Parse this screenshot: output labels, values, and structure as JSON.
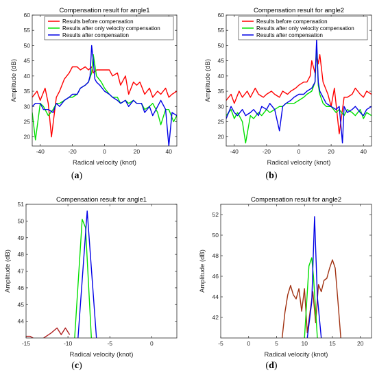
{
  "figure": {
    "captions": [
      "a",
      "b",
      "c",
      "d"
    ]
  },
  "chart_data": [
    {
      "type": "line",
      "panel": "a",
      "title": "Compensation result for angle1",
      "xlabel": "Radical velocity (knot)",
      "ylabel": "Amplitude (dB)",
      "xlim": [
        -45,
        45
      ],
      "ylim": [
        17,
        60
      ],
      "xticks": [
        -40,
        -20,
        0,
        20,
        40
      ],
      "yticks": [
        20,
        25,
        30,
        35,
        40,
        45,
        50,
        55,
        60
      ],
      "legend_position": "top",
      "series": [
        {
          "name": "Results before compensation",
          "color": "#ff0000",
          "x": [
            -45,
            -42,
            -40,
            -37,
            -35,
            -33,
            -30,
            -28,
            -25,
            -22,
            -20,
            -17,
            -15,
            -12,
            -10,
            -8,
            -7,
            -5,
            -3,
            0,
            3,
            5,
            8,
            10,
            13,
            15,
            18,
            20,
            22,
            25,
            28,
            30,
            33,
            35,
            38,
            40,
            42,
            45
          ],
          "values": [
            33,
            35,
            32,
            36,
            31,
            20,
            33,
            35,
            39,
            41,
            43,
            43,
            42,
            43,
            42,
            43,
            41,
            42,
            42,
            42,
            42,
            40,
            41,
            37,
            40,
            34,
            38,
            37,
            38,
            34,
            36,
            33,
            35,
            34,
            36,
            33,
            34,
            35
          ]
        },
        {
          "name": "Results after only velocity compensation",
          "color": "#00e000",
          "x": [
            -45,
            -43,
            -40,
            -38,
            -35,
            -32,
            -30,
            -28,
            -25,
            -22,
            -20,
            -17,
            -15,
            -12,
            -10,
            -8,
            -7,
            -5,
            -2,
            0,
            3,
            5,
            8,
            10,
            13,
            15,
            18,
            20,
            23,
            25,
            28,
            30,
            33,
            35,
            38,
            40,
            43,
            45
          ],
          "values": [
            28,
            19,
            31,
            30,
            27,
            29,
            31,
            31,
            32,
            33,
            33,
            34,
            36,
            37,
            38,
            41,
            47,
            40,
            38,
            36,
            34,
            33,
            33,
            31,
            32,
            31,
            32,
            31,
            31,
            29,
            30,
            31,
            28,
            24,
            29,
            29,
            25,
            27
          ]
        },
        {
          "name": "Results after compensation",
          "color": "#0000e6",
          "x": [
            -45,
            -43,
            -40,
            -38,
            -35,
            -32,
            -30,
            -28,
            -25,
            -22,
            -20,
            -17,
            -15,
            -12,
            -10,
            -9,
            -8,
            -7,
            -6,
            -5,
            -3,
            0,
            3,
            5,
            8,
            10,
            13,
            15,
            18,
            20,
            23,
            25,
            28,
            30,
            33,
            35,
            38,
            40,
            42,
            45
          ],
          "values": [
            30,
            31,
            31,
            29,
            29,
            28,
            31,
            30,
            32,
            33,
            34,
            34,
            36,
            37,
            38,
            40,
            50,
            45,
            39,
            38,
            37,
            35,
            34,
            33,
            32,
            31,
            32,
            30,
            32,
            31,
            31,
            28,
            30,
            27,
            30,
            32,
            29,
            17,
            28,
            27
          ]
        }
      ]
    },
    {
      "type": "line",
      "panel": "b",
      "title": "Compensation result for angle2",
      "xlabel": "Radical velocity (knot)",
      "ylabel": "Amplitude (dB)",
      "xlim": [
        -45,
        45
      ],
      "ylim": [
        17,
        60
      ],
      "xticks": [
        -40,
        -20,
        0,
        20,
        40
      ],
      "yticks": [
        20,
        25,
        30,
        35,
        40,
        45,
        50,
        55,
        60
      ],
      "legend_position": "top",
      "series": [
        {
          "name": "Results before compensation",
          "color": "#ff0000",
          "x": [
            -45,
            -42,
            -40,
            -37,
            -35,
            -32,
            -30,
            -27,
            -25,
            -22,
            -20,
            -17,
            -15,
            -12,
            -10,
            -7,
            -5,
            -2,
            0,
            3,
            5,
            7,
            8,
            10,
            11,
            12,
            13,
            15,
            18,
            20,
            22,
            25,
            28,
            30,
            33,
            35,
            38,
            40,
            42,
            45
          ],
          "values": [
            32,
            34,
            31,
            35,
            33,
            35,
            33,
            36,
            34,
            33,
            34,
            35,
            34,
            33,
            35,
            34,
            35,
            36,
            37,
            38,
            38,
            40,
            45,
            41,
            47,
            44,
            47,
            38,
            34,
            30,
            36,
            21,
            33,
            33,
            34,
            36,
            34,
            33,
            35,
            34
          ]
        },
        {
          "name": "Results after only velocity compensation",
          "color": "#00e000",
          "x": [
            -45,
            -42,
            -40,
            -38,
            -35,
            -33,
            -30,
            -28,
            -25,
            -23,
            -20,
            -18,
            -15,
            -12,
            -10,
            -8,
            -5,
            -3,
            0,
            3,
            5,
            8,
            10,
            11,
            12,
            13,
            15,
            17,
            20,
            23,
            25,
            28,
            30,
            33,
            35,
            38,
            40,
            42,
            45
          ],
          "values": [
            27,
            29,
            26,
            28,
            25,
            18,
            27,
            26,
            28,
            27,
            29,
            28,
            29,
            30,
            30,
            31,
            31,
            31,
            32,
            33,
            34,
            35,
            38,
            50,
            37,
            34,
            31,
            30,
            30,
            28,
            29,
            27,
            29,
            28,
            27,
            29,
            26,
            28,
            27
          ]
        },
        {
          "name": "Results after compensation",
          "color": "#0000e6",
          "x": [
            -45,
            -42,
            -40,
            -38,
            -35,
            -33,
            -30,
            -28,
            -25,
            -23,
            -20,
            -18,
            -15,
            -12,
            -10,
            -8,
            -5,
            -3,
            0,
            3,
            5,
            8,
            10,
            11,
            12,
            13,
            15,
            17,
            20,
            23,
            25,
            27,
            28,
            30,
            33,
            35,
            38,
            40,
            42,
            45
          ],
          "values": [
            26,
            30,
            28,
            27,
            29,
            27,
            28,
            29,
            27,
            30,
            29,
            31,
            29,
            22,
            30,
            31,
            32,
            33,
            34,
            34,
            35,
            36,
            38,
            52,
            38,
            35,
            33,
            31,
            30,
            29,
            30,
            18,
            30,
            28,
            29,
            30,
            28,
            27,
            29,
            30
          ]
        }
      ]
    },
    {
      "type": "line",
      "panel": "c",
      "title": "Compensation result for angle1",
      "xlabel": "Radical velocity (knot)",
      "ylabel": "Amplitude (dB)",
      "xlim": [
        -15,
        3
      ],
      "ylim": [
        43,
        51
      ],
      "xticks": [
        -15,
        -10,
        -5,
        0
      ],
      "yticks": [
        44,
        45,
        46,
        47,
        48,
        49,
        50,
        51
      ],
      "series": [
        {
          "color": "#b02020",
          "x": [
            -15,
            -14.5,
            -13.5,
            -12,
            -11.3,
            -10.8,
            -10.3,
            -9.8
          ],
          "values": [
            43.1,
            43.1,
            42.8,
            43.3,
            43.6,
            43.2,
            43.6,
            43.2
          ]
        },
        {
          "color": "#00e000",
          "x": [
            -9.2,
            -8.3,
            -7.9,
            -7.2
          ],
          "values": [
            43,
            50.1,
            49.6,
            43
          ]
        },
        {
          "color": "#0000e6",
          "x": [
            -8.8,
            -7.7,
            -6.6
          ],
          "values": [
            43,
            50.6,
            43
          ]
        }
      ]
    },
    {
      "type": "line",
      "panel": "d",
      "title": "Compensation result for angle2",
      "xlabel": "Radical velocity (knot)",
      "ylabel": "Amplitude (dB)",
      "xlim": [
        -5,
        22
      ],
      "ylim": [
        40,
        53
      ],
      "xticks": [
        -5,
        0,
        5,
        10,
        15,
        20
      ],
      "yticks": [
        42,
        44,
        46,
        48,
        50,
        52
      ],
      "series": [
        {
          "color": "#a03010",
          "x": [
            6,
            6.5,
            7,
            7.5,
            8,
            8.5,
            9,
            9.5,
            10,
            10.5,
            11,
            11.5,
            12,
            12.5,
            13,
            13.5,
            14,
            14.5,
            15,
            15.5,
            16,
            16.5
          ],
          "values": [
            40,
            42.5,
            44.2,
            45.1,
            44.2,
            43.8,
            44.8,
            42.6,
            44.8,
            40.5,
            42.6,
            44.5,
            41.5,
            45.2,
            44.5,
            45.6,
            45.8,
            46.8,
            47.6,
            46.8,
            43.5,
            40
          ]
        },
        {
          "color": "#00e000",
          "x": [
            10,
            10.8,
            11.3,
            11.6,
            12.3
          ],
          "values": [
            40,
            47,
            47.8,
            46,
            40
          ]
        },
        {
          "color": "#0000e6",
          "x": [
            10.5,
            11.3,
            11.8,
            12.3,
            13
          ],
          "values": [
            40,
            43.5,
            51.8,
            44,
            40
          ]
        }
      ]
    }
  ]
}
